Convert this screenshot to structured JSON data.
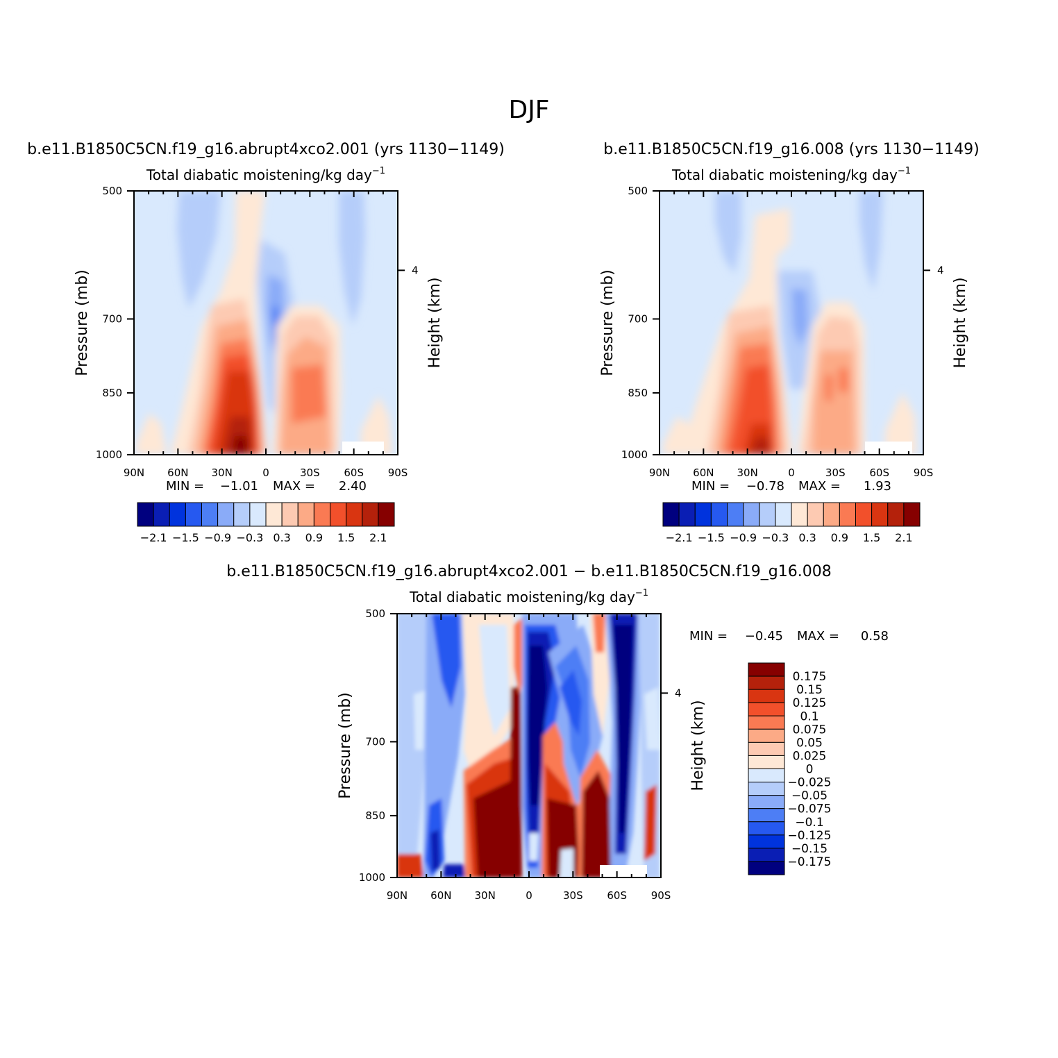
{
  "page_title": "DJF",
  "panels": [
    {
      "title": "b.e11.B1850C5CN.f19_g16.abrupt4xco2.001 (yrs 1130−1149)",
      "subtitle": "Total diabatic moistening/kg day",
      "subtitle_sup": "−1",
      "min_label": "MIN =",
      "min_value": "−1.01",
      "max_label": "MAX =",
      "max_value": "2.40"
    },
    {
      "title": "b.e11.B1850C5CN.f19_g16.008 (yrs 1130−1149)",
      "subtitle": "Total diabatic moistening/kg day",
      "subtitle_sup": "−1",
      "min_label": "MIN =",
      "min_value": "−0.78",
      "max_label": "MAX =",
      "max_value": "1.93"
    },
    {
      "title": "b.e11.B1850C5CN.f19_g16.abrupt4xco2.001 − b.e11.B1850C5CN.f19_g16.008",
      "subtitle": "Total diabatic moistening/kg day",
      "subtitle_sup": "−1",
      "min_label": "MIN =",
      "min_value": "−0.45",
      "max_label": "MAX =",
      "max_value": "0.58"
    }
  ],
  "axes": {
    "ylabel": "Pressure (mb)",
    "ylabel_right": "Height (km)",
    "yticks": [
      "500",
      "700",
      "850",
      "1000"
    ],
    "yticks_right": [
      "4"
    ],
    "xticks": [
      "90N",
      "60N",
      "30N",
      "0",
      "30S",
      "60S",
      "90S"
    ]
  },
  "colorbar_top": {
    "colors": [
      "#00007f",
      "#0a1eb4",
      "#0033dd",
      "#2659f0",
      "#4d7ef5",
      "#8aabf8",
      "#b5cdfa",
      "#d9e9fd",
      "#fee8d6",
      "#fdcab2",
      "#fcaa86",
      "#fa7a53",
      "#f2502b",
      "#d93511",
      "#b4210b",
      "#860000"
    ],
    "labels": [
      "−2.1",
      "−1.5",
      "−0.9",
      "−0.3",
      "0.3",
      "0.9",
      "1.5",
      "2.1"
    ]
  },
  "colorbar_diff": {
    "colors": [
      "#860000",
      "#b4210b",
      "#d93511",
      "#f2502b",
      "#fa7a53",
      "#fcaa86",
      "#fdcab2",
      "#fee8d6",
      "#d9e9fd",
      "#b5cdfa",
      "#8aabf8",
      "#4d7ef5",
      "#2659f0",
      "#0033dd",
      "#0a1eb4",
      "#00007f"
    ],
    "labels": [
      "0.175",
      "0.15",
      "0.125",
      "0.1",
      "0.075",
      "0.05",
      "0.025",
      "0",
      "−0.025",
      "−0.05",
      "−0.075",
      "−0.1",
      "−0.125",
      "−0.15",
      "−0.175"
    ]
  },
  "chart_data": [
    {
      "type": "heatmap",
      "title": "b.e11.B1850C5CN.f19_g16.abrupt4xco2.001 (yrs 1130−1149)",
      "xlabel": "",
      "ylabel": "Pressure (mb)",
      "xlim": [
        90,
        -90
      ],
      "ylim": [
        1000,
        500
      ],
      "levels": [
        -2.1,
        -1.8,
        -1.5,
        -1.2,
        -0.9,
        -0.6,
        -0.3,
        0,
        0.3,
        0.6,
        0.9,
        1.2,
        1.5,
        1.8,
        2.1
      ],
      "min": -1.01,
      "max": 2.4,
      "features": [
        {
          "kind": "min",
          "lat": 10,
          "p": 760,
          "value": -1.0
        },
        {
          "kind": "max",
          "lat": 18,
          "p": 980,
          "value": 2.4
        },
        {
          "kind": "max",
          "lat": -35,
          "p": 850,
          "value": 1.2
        }
      ]
    },
    {
      "type": "heatmap",
      "title": "b.e11.B1850C5CN.f19_g16.008 (yrs 1130−1149)",
      "xlabel": "",
      "ylabel": "Pressure (mb)",
      "xlim": [
        90,
        -90
      ],
      "ylim": [
        1000,
        500
      ],
      "levels": [
        -2.1,
        -1.8,
        -1.5,
        -1.2,
        -0.9,
        -0.6,
        -0.3,
        0,
        0.3,
        0.6,
        0.9,
        1.2,
        1.5,
        1.8,
        2.1
      ],
      "min": -0.78,
      "max": 1.93,
      "features": [
        {
          "kind": "min",
          "lat": 8,
          "p": 740,
          "value": -0.78
        },
        {
          "kind": "max",
          "lat": 18,
          "p": 980,
          "value": 1.93
        },
        {
          "kind": "max",
          "lat": -35,
          "p": 850,
          "value": 1.0
        }
      ]
    },
    {
      "type": "heatmap",
      "title": "b.e11.B1850C5CN.f19_g16.abrupt4xco2.001 − b.e11.B1850C5CN.f19_g16.008",
      "xlabel": "",
      "ylabel": "Pressure (mb)",
      "xlim": [
        90,
        -90
      ],
      "ylim": [
        1000,
        500
      ],
      "levels": [
        -0.175,
        -0.15,
        -0.125,
        -0.1,
        -0.075,
        -0.05,
        -0.025,
        0,
        0.025,
        0.05,
        0.075,
        0.1,
        0.125,
        0.15,
        0.175
      ],
      "min": -0.45,
      "max": 0.58,
      "features": [
        {
          "kind": "min",
          "lat": 0,
          "p": 650,
          "value": -0.45
        },
        {
          "kind": "max",
          "lat": 20,
          "p": 900,
          "value": 0.58
        },
        {
          "kind": "min",
          "lat": -65,
          "p": 700,
          "value": -0.3
        }
      ]
    }
  ]
}
